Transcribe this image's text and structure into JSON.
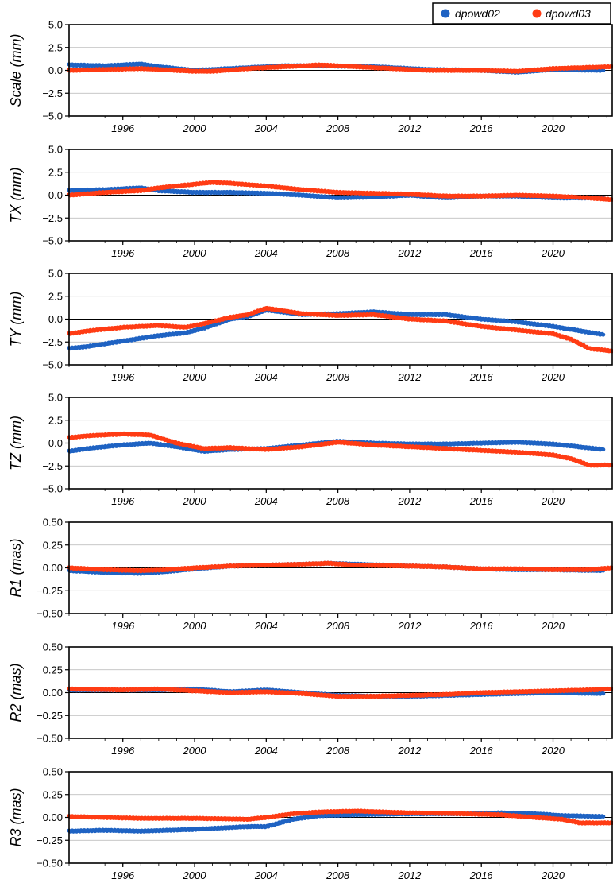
{
  "legend": {
    "placement": "top-right",
    "entries": [
      {
        "name": "dpowd02",
        "color": "#1f63c3"
      },
      {
        "name": "dpowd03",
        "color": "#ff3c14"
      }
    ]
  },
  "colors": {
    "dpowd02": "#1f63c3",
    "dpowd03": "#ff3c14",
    "zero_line": "#000000",
    "grid": "#b4b4b4"
  },
  "chart_data": [
    {
      "type": "line",
      "ylabel": "Scale (mm)",
      "xlim": [
        1993,
        2023.3
      ],
      "ylim": [
        -5.0,
        5.0
      ],
      "yticks": [
        -5.0,
        -2.5,
        0.0,
        2.5,
        5.0
      ],
      "ytick_labels": [
        "−5.0",
        "−2.5",
        "0.0",
        "2.5",
        "5.0"
      ],
      "xticks": [
        1996,
        2000,
        2004,
        2008,
        2012,
        2016,
        2020
      ],
      "xtick_labels": [
        "1996",
        "2000",
        "2004",
        "2008",
        "2012",
        "2016",
        "2020"
      ],
      "grid": true,
      "series": [
        {
          "name": "dpowd02",
          "x": [
            1993,
            1995,
            1997,
            1998,
            2000,
            2001,
            2003,
            2005,
            2007,
            2010,
            2013,
            2016,
            2018,
            2020,
            2022.8
          ],
          "y": [
            0.6,
            0.5,
            0.7,
            0.4,
            0.0,
            0.1,
            0.3,
            0.5,
            0.5,
            0.4,
            0.1,
            0.0,
            -0.2,
            0.1,
            0.0
          ]
        },
        {
          "name": "dpowd03",
          "x": [
            1993,
            1995,
            1997,
            1998,
            2000,
            2001,
            2003,
            2005,
            2007,
            2010,
            2013,
            2016,
            2018,
            2020,
            2023.3
          ],
          "y": [
            0.0,
            0.1,
            0.2,
            0.1,
            -0.1,
            -0.1,
            0.2,
            0.4,
            0.6,
            0.3,
            0.0,
            0.0,
            -0.1,
            0.2,
            0.4
          ]
        }
      ]
    },
    {
      "type": "line",
      "ylabel": "TX (mm)",
      "xlim": [
        1993,
        2023.3
      ],
      "ylim": [
        -5.0,
        5.0
      ],
      "yticks": [
        -5.0,
        -2.5,
        0.0,
        2.5,
        5.0
      ],
      "ytick_labels": [
        "−5.0",
        "−2.5",
        "0.0",
        "2.5",
        "5.0"
      ],
      "xticks": [
        1996,
        2000,
        2004,
        2008,
        2012,
        2016,
        2020
      ],
      "xtick_labels": [
        "1996",
        "2000",
        "2004",
        "2008",
        "2012",
        "2016",
        "2020"
      ],
      "grid": true,
      "series": [
        {
          "name": "dpowd02",
          "x": [
            1993,
            1995,
            1997,
            1998,
            2000,
            2002,
            2004,
            2006,
            2008,
            2010,
            2012,
            2014,
            2016,
            2018,
            2020,
            2022.8
          ],
          "y": [
            0.5,
            0.6,
            0.8,
            0.5,
            0.3,
            0.3,
            0.2,
            0.0,
            -0.3,
            -0.2,
            0.0,
            -0.3,
            -0.1,
            -0.1,
            -0.3,
            -0.3
          ]
        },
        {
          "name": "dpowd03",
          "x": [
            1993,
            1995,
            1997,
            1998,
            2000,
            2001,
            2002,
            2004,
            2006,
            2008,
            2010,
            2012,
            2014,
            2016,
            2018,
            2020,
            2022,
            2023.3
          ],
          "y": [
            0.0,
            0.3,
            0.5,
            0.8,
            1.2,
            1.4,
            1.3,
            1.0,
            0.6,
            0.3,
            0.2,
            0.1,
            -0.1,
            -0.1,
            0.0,
            -0.1,
            -0.3,
            -0.5
          ]
        }
      ]
    },
    {
      "type": "line",
      "ylabel": "TY (mm)",
      "xlim": [
        1993,
        2023.3
      ],
      "ylim": [
        -5.0,
        5.0
      ],
      "yticks": [
        -5.0,
        -2.5,
        0.0,
        2.5,
        5.0
      ],
      "ytick_labels": [
        "−5.0",
        "−2.5",
        "0.0",
        "2.5",
        "5.0"
      ],
      "xticks": [
        1996,
        2000,
        2004,
        2008,
        2012,
        2016,
        2020
      ],
      "xtick_labels": [
        "1996",
        "2000",
        "2004",
        "2008",
        "2012",
        "2016",
        "2020"
      ],
      "grid": true,
      "series": [
        {
          "name": "dpowd02",
          "x": [
            1993,
            1994,
            1996,
            1998,
            1999.5,
            2000.5,
            2002,
            2003,
            2004,
            2006,
            2008,
            2010,
            2012,
            2014,
            2016,
            2018,
            2020,
            2022.8
          ],
          "y": [
            -3.2,
            -3.0,
            -2.4,
            -1.8,
            -1.5,
            -1.0,
            0.0,
            0.3,
            1.0,
            0.5,
            0.6,
            0.8,
            0.5,
            0.5,
            0.0,
            -0.3,
            -0.8,
            -1.7
          ]
        },
        {
          "name": "dpowd03",
          "x": [
            1993,
            1994,
            1996,
            1998,
            1999.5,
            2000.5,
            2002,
            2003,
            2004,
            2006,
            2008,
            2010,
            2012,
            2014,
            2016,
            2018,
            2020,
            2021,
            2022,
            2023.3
          ],
          "y": [
            -1.6,
            -1.3,
            -0.9,
            -0.7,
            -0.9,
            -0.5,
            0.2,
            0.5,
            1.2,
            0.6,
            0.4,
            0.5,
            0.0,
            -0.2,
            -0.8,
            -1.2,
            -1.6,
            -2.2,
            -3.2,
            -3.5
          ]
        }
      ]
    },
    {
      "type": "line",
      "ylabel": "TZ (mm)",
      "xlim": [
        1993,
        2023.3
      ],
      "ylim": [
        -5.0,
        5.0
      ],
      "yticks": [
        -5.0,
        -2.5,
        0.0,
        2.5,
        5.0
      ],
      "ytick_labels": [
        "−5.0",
        "−2.5",
        "0.0",
        "2.5",
        "5.0"
      ],
      "xticks": [
        1996,
        2000,
        2004,
        2008,
        2012,
        2016,
        2020
      ],
      "xtick_labels": [
        "1996",
        "2000",
        "2004",
        "2008",
        "2012",
        "2016",
        "2020"
      ],
      "grid": true,
      "series": [
        {
          "name": "dpowd02",
          "x": [
            1993,
            1994,
            1996,
            1997.5,
            1999,
            2000.5,
            2002,
            2004,
            2006,
            2008,
            2010,
            2012,
            2014,
            2016,
            2018,
            2020,
            2022.8
          ],
          "y": [
            -0.9,
            -0.6,
            -0.2,
            0.0,
            -0.4,
            -0.9,
            -0.7,
            -0.6,
            -0.2,
            0.2,
            0.0,
            -0.1,
            -0.1,
            0.0,
            0.1,
            -0.1,
            -0.7
          ]
        },
        {
          "name": "dpowd03",
          "x": [
            1993,
            1994,
            1996,
            1997.5,
            1999,
            2000.5,
            2002,
            2004,
            2006,
            2008,
            2010,
            2012,
            2014,
            2016,
            2018,
            2020,
            2021,
            2022,
            2023.3
          ],
          "y": [
            0.6,
            0.8,
            1.0,
            0.9,
            0.0,
            -0.6,
            -0.5,
            -0.7,
            -0.4,
            0.1,
            -0.2,
            -0.4,
            -0.6,
            -0.8,
            -1.0,
            -1.3,
            -1.7,
            -2.4,
            -2.4
          ]
        }
      ]
    },
    {
      "type": "line",
      "ylabel": "R1 (mas)",
      "xlim": [
        1993,
        2023.3
      ],
      "ylim": [
        -0.5,
        0.5
      ],
      "yticks": [
        -0.5,
        -0.25,
        0.0,
        0.25,
        0.5
      ],
      "ytick_labels": [
        "−0.50",
        "−0.25",
        "0.00",
        "0.25",
        "0.50"
      ],
      "xticks": [
        1996,
        2000,
        2004,
        2008,
        2012,
        2016,
        2020
      ],
      "xtick_labels": [
        "1996",
        "2000",
        "2004",
        "2008",
        "2012",
        "2016",
        "2020"
      ],
      "grid": true,
      "series": [
        {
          "name": "dpowd02",
          "x": [
            1993,
            1995,
            1997,
            1998.5,
            2000,
            2002,
            2004,
            2006,
            2007.5,
            2009,
            2012,
            2014,
            2016,
            2018,
            2020,
            2022.8
          ],
          "y": [
            -0.03,
            -0.05,
            -0.06,
            -0.04,
            -0.01,
            0.02,
            0.03,
            0.04,
            0.05,
            0.04,
            0.02,
            0.01,
            -0.01,
            -0.02,
            -0.02,
            -0.03
          ]
        },
        {
          "name": "dpowd03",
          "x": [
            1993,
            1995,
            1997,
            1998.5,
            2000,
            2002,
            2004,
            2006,
            2007.5,
            2009,
            2012,
            2014,
            2016,
            2018,
            2020,
            2022,
            2023.3
          ],
          "y": [
            0.0,
            -0.02,
            -0.03,
            -0.02,
            0.0,
            0.02,
            0.03,
            0.04,
            0.05,
            0.03,
            0.02,
            0.01,
            -0.01,
            -0.01,
            -0.02,
            -0.02,
            0.0
          ]
        }
      ]
    },
    {
      "type": "line",
      "ylabel": "R2 (mas)",
      "xlim": [
        1993,
        2023.3
      ],
      "ylim": [
        -0.5,
        0.5
      ],
      "yticks": [
        -0.5,
        -0.25,
        0.0,
        0.25,
        0.5
      ],
      "ytick_labels": [
        "−0.50",
        "−0.25",
        "0.00",
        "0.25",
        "0.50"
      ],
      "xticks": [
        1996,
        2000,
        2004,
        2008,
        2012,
        2016,
        2020
      ],
      "xtick_labels": [
        "1996",
        "2000",
        "2004",
        "2008",
        "2012",
        "2016",
        "2020"
      ],
      "grid": true,
      "series": [
        {
          "name": "dpowd02",
          "x": [
            1993,
            1996,
            1998,
            2000,
            2002,
            2004,
            2006,
            2008,
            2010,
            2012,
            2014,
            2016,
            2018,
            2020,
            2022.8
          ],
          "y": [
            0.03,
            0.03,
            0.03,
            0.04,
            0.01,
            0.03,
            0.0,
            -0.03,
            -0.04,
            -0.04,
            -0.03,
            -0.02,
            -0.01,
            0.0,
            -0.01
          ]
        },
        {
          "name": "dpowd03",
          "x": [
            1993,
            1996,
            1998,
            2000,
            2002,
            2004,
            2006,
            2008,
            2010,
            2012,
            2014,
            2016,
            2018,
            2020,
            2022,
            2023.3
          ],
          "y": [
            0.04,
            0.03,
            0.04,
            0.02,
            0.0,
            0.01,
            -0.01,
            -0.04,
            -0.04,
            -0.03,
            -0.02,
            0.0,
            0.01,
            0.02,
            0.03,
            0.04
          ]
        }
      ]
    },
    {
      "type": "line",
      "ylabel": "R3 (mas)",
      "xlim": [
        1993,
        2023.3
      ],
      "ylim": [
        -0.5,
        0.5
      ],
      "yticks": [
        -0.5,
        -0.25,
        0.0,
        0.25,
        0.5
      ],
      "ytick_labels": [
        "−0.50",
        "−0.25",
        "0.00",
        "0.25",
        "0.50"
      ],
      "xticks": [
        1996,
        2000,
        2004,
        2008,
        2012,
        2016,
        2020
      ],
      "xtick_labels": [
        "1996",
        "2000",
        "2004",
        "2008",
        "2012",
        "2016",
        "2020"
      ],
      "grid": true,
      "series": [
        {
          "name": "dpowd02",
          "x": [
            1993,
            1995,
            1997,
            2000,
            2003,
            2004,
            2005.5,
            2007,
            2009,
            2012,
            2015,
            2017,
            2019,
            2020.5,
            2022.8
          ],
          "y": [
            -0.15,
            -0.14,
            -0.15,
            -0.13,
            -0.1,
            -0.1,
            -0.02,
            0.02,
            0.03,
            0.04,
            0.04,
            0.05,
            0.04,
            0.02,
            0.01
          ]
        },
        {
          "name": "dpowd03",
          "x": [
            1993,
            1995,
            1997,
            2000,
            2003,
            2004,
            2005.5,
            2007,
            2009,
            2012,
            2015,
            2017,
            2019,
            2020.5,
            2021.5,
            2023.3
          ],
          "y": [
            0.01,
            0.0,
            -0.01,
            -0.01,
            -0.02,
            0.0,
            0.04,
            0.06,
            0.07,
            0.05,
            0.04,
            0.03,
            0.0,
            -0.02,
            -0.06,
            -0.06
          ]
        }
      ]
    }
  ]
}
